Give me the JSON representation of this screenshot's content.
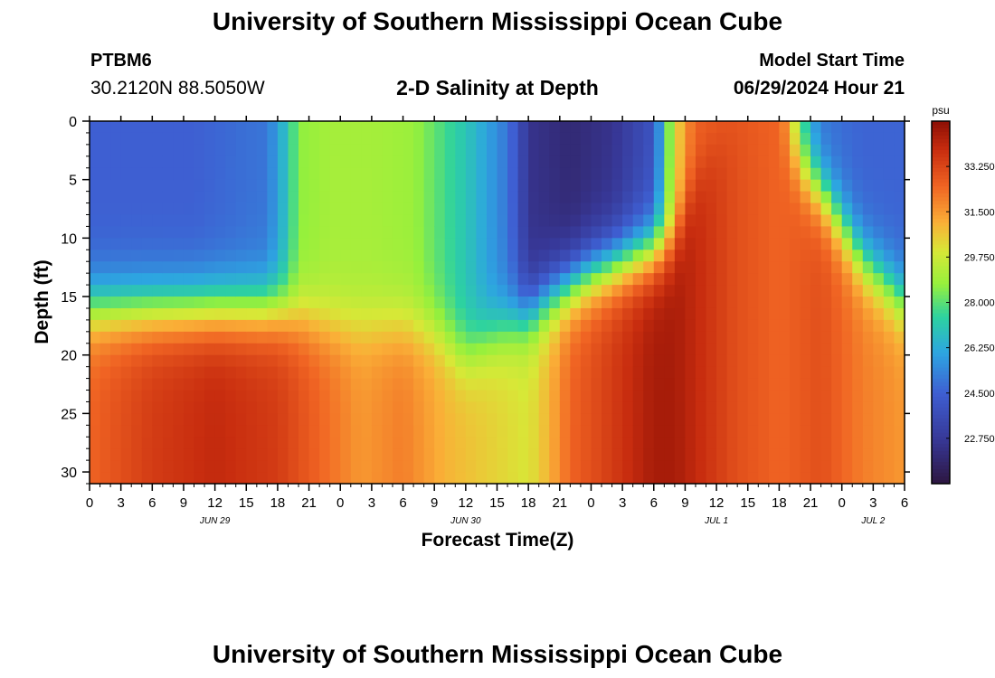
{
  "header": {
    "title": "University of Southern Mississippi Ocean Cube",
    "station_id": "PTBM6",
    "coords": "30.2120N  88.5050W",
    "subtitle": "2-D Salinity at Depth",
    "model_label": "Model Start Time",
    "model_time": "06/29/2024 Hour 21"
  },
  "footer": {
    "title": "University of Southern Mississippi Ocean Cube"
  },
  "chart_data": {
    "type": "heatmap",
    "title": "2-D Salinity at Depth",
    "xlabel": "Forecast Time(Z)",
    "ylabel": "Depth (ft)",
    "units": "psu",
    "x_tick_labels": [
      "0",
      "3",
      "6",
      "9",
      "12",
      "15",
      "18",
      "21",
      "0",
      "3",
      "6",
      "9",
      "12",
      "15",
      "18",
      "21",
      "0",
      "3",
      "6",
      "9",
      "12",
      "15",
      "18",
      "21",
      "0",
      "3",
      "6"
    ],
    "x_range_hours": [
      0,
      78
    ],
    "date_labels": [
      {
        "label": "JUN 29",
        "hour": 12
      },
      {
        "label": "JUN 30",
        "hour": 36
      },
      {
        "label": "JUL 1",
        "hour": 60
      },
      {
        "label": "JUL 2",
        "hour": 75
      }
    ],
    "y_ticks": [
      0,
      5,
      10,
      15,
      20,
      25,
      30
    ],
    "y_range_ft": [
      0,
      31
    ],
    "colorbar": {
      "min": 21.0,
      "max": 35.0,
      "tick_values": [
        22.75,
        24.5,
        26.25,
        28.0,
        29.75,
        31.5,
        33.25
      ],
      "tick_labels": [
        "22.750",
        "24.500",
        "26.250",
        "28.000",
        "29.750",
        "31.500",
        "33.250"
      ]
    },
    "surface_profile_psu": {
      "hours": [
        0,
        10,
        17,
        19,
        20,
        23,
        27,
        31,
        36,
        39,
        40,
        41,
        42,
        46,
        50,
        54,
        55,
        56,
        57,
        58,
        62,
        66,
        67,
        68,
        69,
        70,
        74,
        78
      ],
      "values": [
        24.5,
        24.5,
        25.0,
        27.0,
        28.6,
        29.0,
        29.0,
        28.8,
        27.0,
        25.5,
        25.0,
        24.0,
        22.5,
        22.0,
        22.5,
        24.0,
        27.0,
        30.0,
        31.5,
        32.5,
        32.8,
        32.5,
        31.0,
        28.0,
        26.0,
        25.0,
        24.6,
        24.6
      ]
    },
    "bottom_profile_psu": {
      "hours": [
        0,
        6,
        12,
        18,
        22,
        26,
        30,
        34,
        38,
        42,
        44,
        46,
        50,
        54,
        56,
        58,
        62,
        66,
        70,
        74,
        78
      ],
      "values": [
        32.5,
        33.5,
        34.0,
        33.5,
        32.5,
        31.5,
        32.0,
        31.0,
        30.5,
        30.0,
        31.0,
        32.5,
        33.5,
        34.5,
        34.5,
        34.0,
        33.0,
        32.5,
        33.0,
        32.0,
        31.5
      ]
    },
    "halocline_depth_ft": {
      "hours": [
        0,
        18,
        21,
        24,
        30,
        33,
        36,
        39,
        42,
        44,
        48,
        54,
        56,
        58,
        60,
        62,
        66,
        70,
        74,
        78
      ],
      "values": [
        16,
        16,
        17,
        17.5,
        17.5,
        18,
        20,
        18,
        16.5,
        15,
        13,
        11,
        10,
        5,
        2,
        1,
        2,
        6,
        12,
        15.5
      ]
    }
  }
}
